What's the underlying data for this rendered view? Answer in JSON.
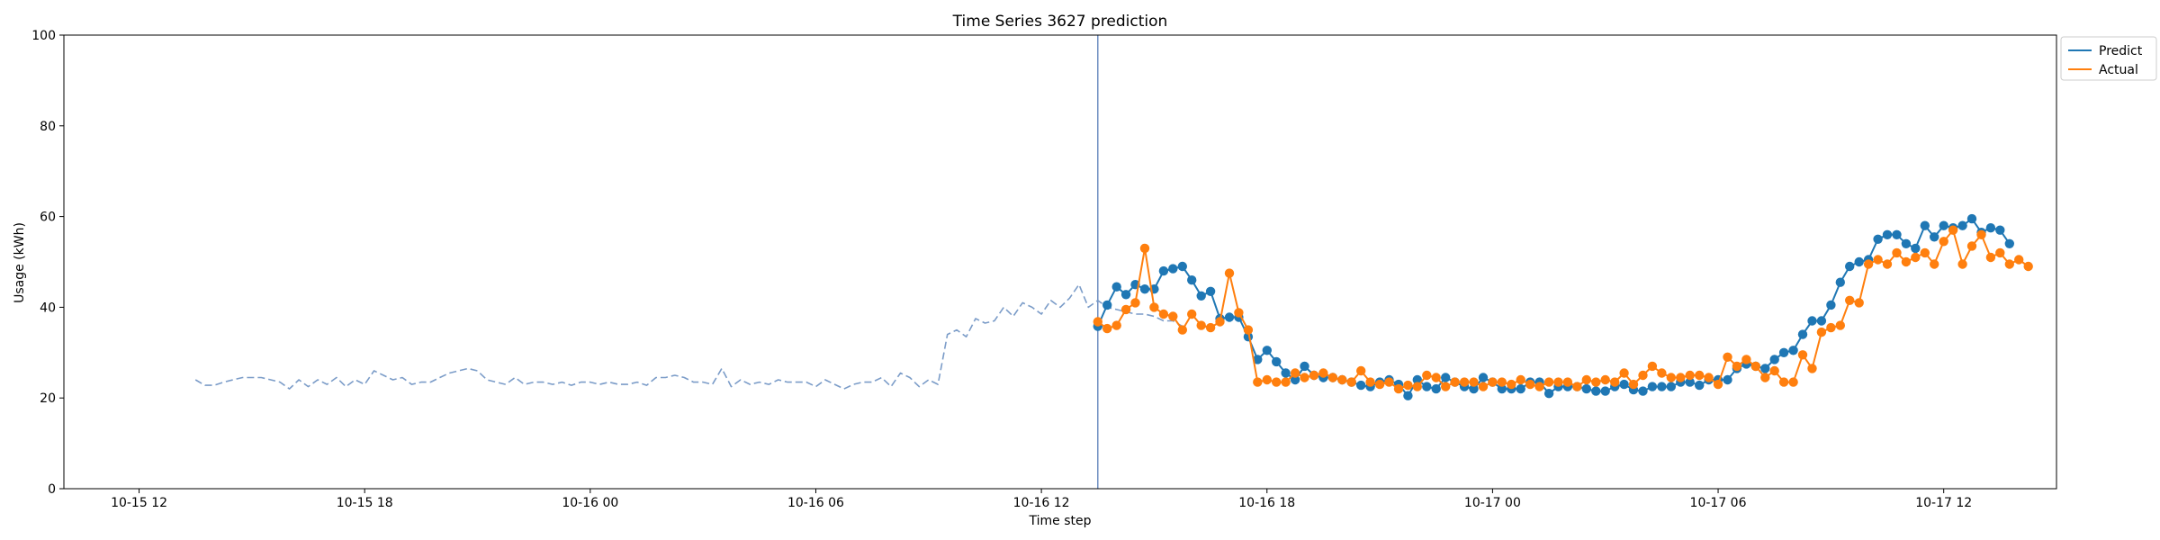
{
  "chart_data": {
    "type": "line",
    "title": "Time Series 3627 prediction",
    "xlabel": "Time step",
    "ylabel": "Usage (kWh)",
    "ylim": [
      0,
      100
    ],
    "xlim": [
      "2024-10-15T10:00",
      "2024-10-17T15:00"
    ],
    "y_ticks": [
      0,
      20,
      40,
      60,
      80,
      100
    ],
    "x_ticks": [
      {
        "t": "2024-10-15T12:00",
        "label": "10-15 12"
      },
      {
        "t": "2024-10-15T18:00",
        "label": "10-15 18"
      },
      {
        "t": "2024-10-16T00:00",
        "label": "10-16 00"
      },
      {
        "t": "2024-10-16T06:00",
        "label": "10-16 06"
      },
      {
        "t": "2024-10-16T12:00",
        "label": "10-16 12"
      },
      {
        "t": "2024-10-16T18:00",
        "label": "10-16 18"
      },
      {
        "t": "2024-10-17T00:00",
        "label": "10-17 00"
      },
      {
        "t": "2024-10-17T06:00",
        "label": "10-17 06"
      },
      {
        "t": "2024-10-17T12:00",
        "label": "10-17 12"
      }
    ],
    "grid": false,
    "legend_position": "top-right, outside plot",
    "vline": "2024-10-16T13:30",
    "series": [
      {
        "name": "Predict",
        "color": "#1f77b4",
        "start": "2024-10-16T13:30",
        "interval_minutes": 15,
        "values": [
          35.8,
          40.5,
          44.5,
          42.8,
          45.0,
          44.0,
          44.0,
          48.0,
          48.5,
          49.0,
          46.0,
          42.5,
          43.5,
          37.5,
          37.8,
          37.8,
          33.5,
          28.5,
          30.5,
          28.0,
          25.5,
          24.0,
          27.0,
          25.0,
          24.5,
          24.5,
          24.0,
          23.5,
          22.8,
          22.5,
          23.5,
          24.0,
          23.0,
          20.5,
          24.0,
          22.5,
          22.0,
          24.5,
          23.5,
          22.5,
          22.0,
          24.5,
          23.5,
          22.0,
          22.0,
          22.0,
          23.5,
          23.5,
          21.0,
          22.5,
          22.5,
          22.5,
          22.0,
          21.5,
          21.5,
          22.5,
          23.0,
          21.8,
          21.5,
          22.5,
          22.5,
          22.5,
          23.5,
          23.5,
          22.8,
          24.0,
          24.0,
          24.0,
          26.5,
          27.5,
          27.0,
          26.5,
          28.5,
          30.0,
          30.5,
          34.0,
          37.0,
          37.0,
          40.5,
          45.5,
          49.0,
          50.0,
          50.5,
          55.0,
          56.0,
          56.0,
          54.0,
          53.0,
          58.0,
          55.5,
          58.0,
          57.5,
          58.0,
          59.5,
          56.5,
          57.5,
          57.0,
          54.0
        ]
      },
      {
        "name": "Actual",
        "color": "#ff7f0e",
        "start": "2024-10-16T13:30",
        "interval_minutes": 15,
        "values": [
          36.8,
          35.3,
          36.0,
          39.5,
          41.0,
          53.0,
          40.0,
          38.5,
          38.0,
          35.0,
          38.5,
          36.0,
          35.5,
          36.8,
          47.5,
          38.8,
          35.0,
          23.5,
          24.0,
          23.5,
          23.5,
          25.5,
          24.5,
          25.0,
          25.5,
          24.5,
          24.0,
          23.5,
          26.0,
          23.5,
          23.0,
          23.5,
          22.0,
          22.8,
          22.5,
          25.0,
          24.5,
          22.5,
          23.5,
          23.5,
          23.5,
          22.5,
          23.5,
          23.5,
          23.0,
          24.0,
          23.0,
          22.5,
          23.5,
          23.5,
          23.5,
          22.5,
          24.0,
          23.5,
          24.0,
          23.5,
          25.5,
          23.0,
          25.0,
          27.0,
          25.5,
          24.5,
          24.5,
          25.0,
          25.0,
          24.5,
          23.0,
          29.0,
          27.0,
          28.5,
          27.0,
          24.5,
          26.0,
          23.5,
          23.5,
          29.5,
          26.5,
          34.5,
          35.5,
          36.0,
          41.5,
          41.0,
          49.5,
          50.5,
          49.5,
          52.0,
          50.0,
          51.0,
          52.0,
          49.5,
          54.5,
          57.0,
          49.5,
          53.5,
          56.0,
          51.0,
          52.0,
          49.5,
          50.5,
          49.0
        ]
      },
      {
        "name": "",
        "color": "#7b9cc8",
        "style": "dashed",
        "start": "2024-10-15T13:30",
        "interval_minutes": 15,
        "values": [
          24.0,
          22.8,
          22.8,
          23.5,
          24.0,
          24.5,
          24.5,
          24.5,
          24.0,
          23.5,
          22.0,
          24.0,
          22.5,
          24.0,
          23.0,
          24.5,
          22.5,
          24.0,
          23.0,
          26.0,
          25.0,
          24.0,
          24.5,
          23.0,
          23.5,
          23.5,
          24.5,
          25.5,
          26.0,
          26.5,
          26.0,
          24.0,
          23.5,
          23.0,
          24.5,
          23.0,
          23.5,
          23.5,
          23.0,
          23.5,
          22.8,
          23.5,
          23.5,
          23.0,
          23.5,
          23.0,
          23.0,
          23.5,
          22.8,
          24.5,
          24.5,
          25.0,
          24.5,
          23.5,
          23.5,
          23.0,
          26.5,
          22.5,
          24.0,
          23.0,
          23.5,
          23.0,
          24.0,
          23.5,
          23.5,
          23.5,
          22.5,
          24.0,
          23.0,
          22.0,
          23.0,
          23.5,
          23.5,
          24.5,
          22.5,
          25.5,
          24.5,
          22.5,
          24.0,
          23.0,
          34.0,
          35.0,
          33.5,
          37.5,
          36.5,
          37.0,
          40.0,
          38.0,
          41.0,
          40.0,
          38.5,
          41.5,
          40.0,
          42.0,
          45.0,
          40.0,
          41.5,
          40.0,
          39.5,
          39.0,
          38.5,
          38.5,
          38.0,
          37.0,
          37.0,
          35.8
        ]
      }
    ]
  }
}
